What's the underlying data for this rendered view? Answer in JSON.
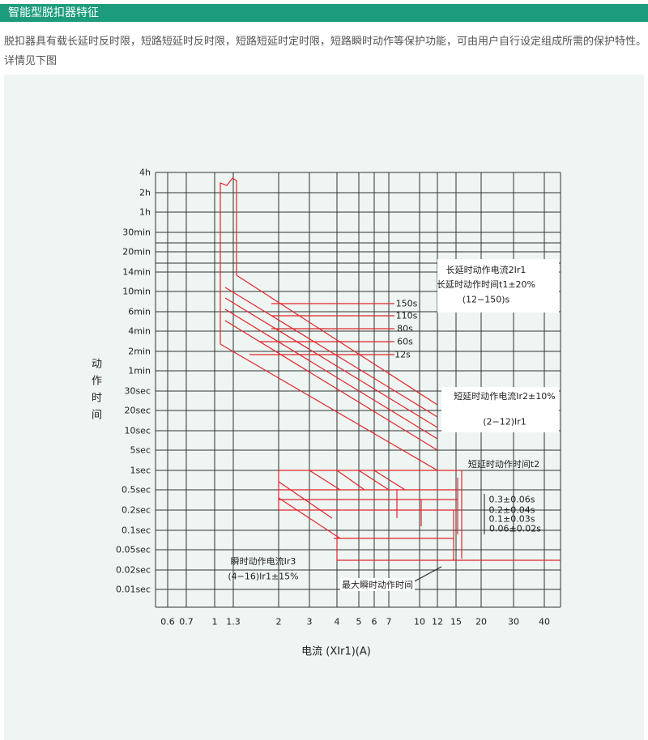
{
  "header": {
    "title": "智能型脱扣器特征"
  },
  "intro": {
    "lines": [
      "脱扣器具有载长延时反时限，短路短延时反时限，短路短延时定时限，短路瞬时动作等保护功能，可由用户自行设定组成所需的保护特性。",
      "详情见下图"
    ]
  },
  "chart": {
    "y_labels": [
      "4h",
      "2h",
      "1h",
      "30min",
      "20min",
      "14min",
      "10min",
      "6min",
      "4min",
      "2min",
      "1min",
      "30sec",
      "20sec",
      "10sec",
      "5sec",
      "1sec",
      "0.5sec",
      "0.2sec",
      "0.1sec",
      "0.05sec",
      "0.02sec",
      "0.01sec"
    ],
    "x_labels": [
      "0.6",
      "0.7",
      "1",
      "1.3",
      "2",
      "3",
      "4",
      "5",
      "6",
      "7",
      "10",
      "12",
      "15",
      "20",
      "30",
      "40"
    ],
    "y_title": "动作时间",
    "x_title": "电流 (XIr1)(A)",
    "annotations": [
      "长延时动作电流2Ir1",
      "长延时动作时间t1±20%",
      "(12−150)s",
      "150s",
      "110s",
      "80s",
      "60s",
      "12s",
      "短延时动作电流Ir2±10%",
      "(2−12)Ir1",
      "短延时动作时间t2",
      "0.3±0.06s",
      "0.2±0.04s",
      "0.1±0.03s",
      "0.06±0.02s",
      "瞬时动作电流Ir3",
      "(4−16)Ir1±15%",
      "最大瞬时动作时间"
    ]
  }
}
